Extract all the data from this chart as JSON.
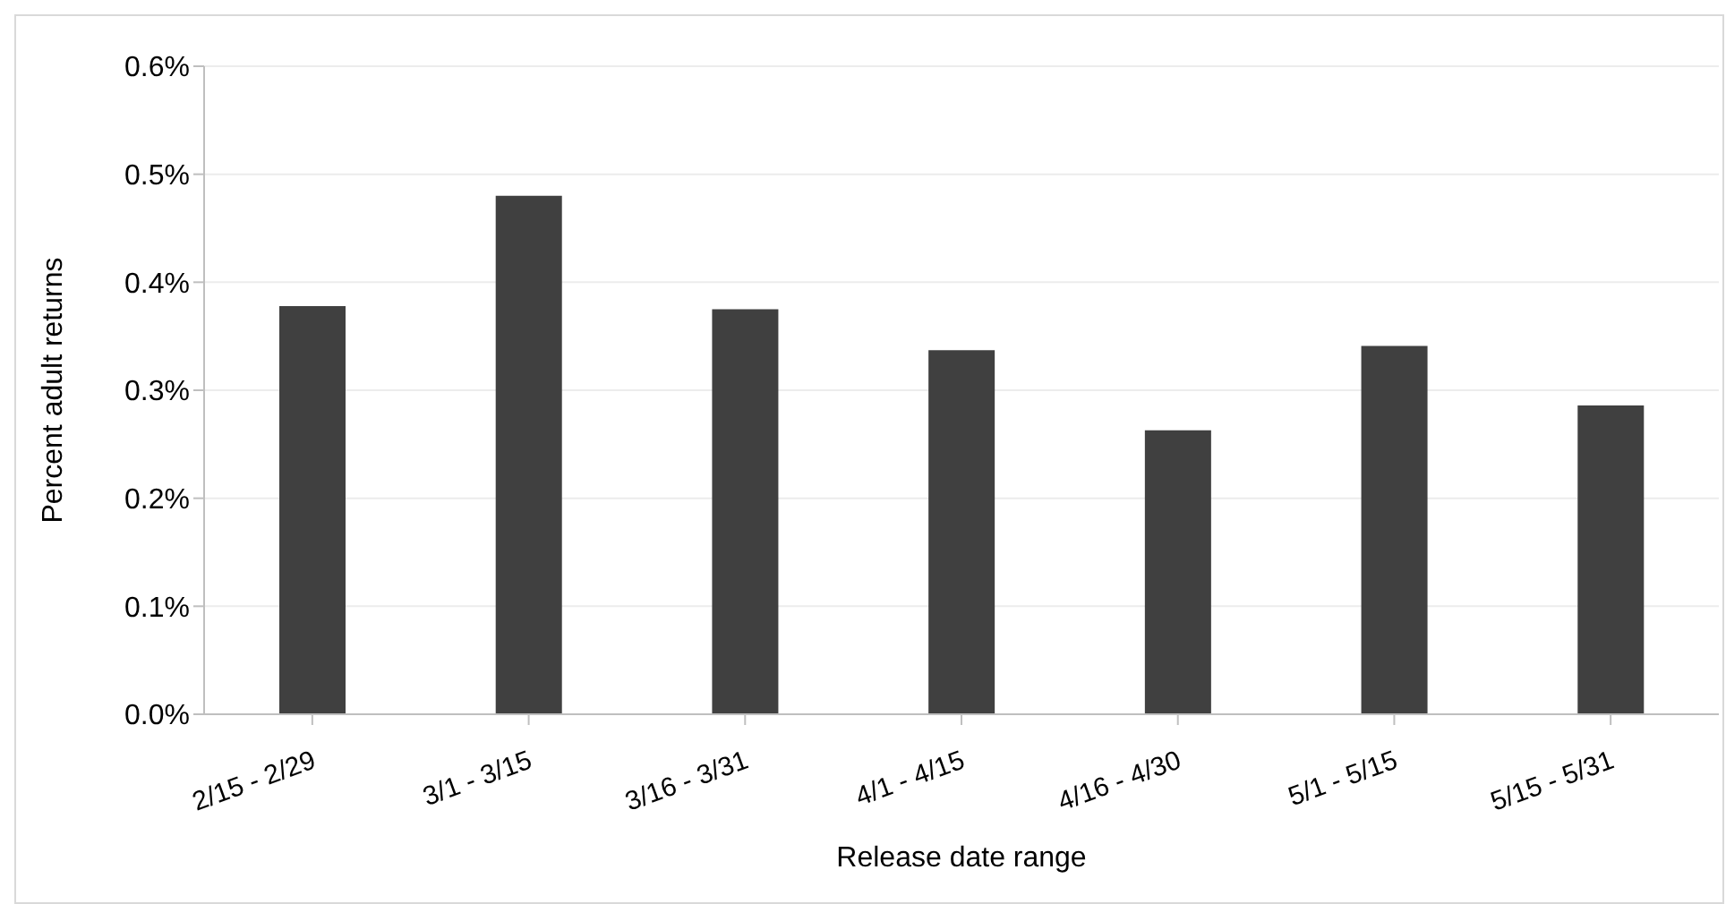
{
  "chart_data": {
    "type": "bar",
    "xlabel": "Release date range",
    "ylabel": "Percent adult returns",
    "categories": [
      "2/15 - 2/29",
      "3/1 - 3/15",
      "3/16 - 3/31",
      "4/1 - 4/15",
      "4/16 - 4/30",
      "5/1 - 5/15",
      "5/15 - 5/31"
    ],
    "values": [
      0.378,
      0.48,
      0.375,
      0.337,
      0.263,
      0.341,
      0.286
    ],
    "color": "#404040",
    "ylim": [
      0,
      0.6
    ],
    "yticks": [
      {
        "value": 0,
        "label": "0.0%"
      },
      {
        "value": 0.1,
        "label": "0.1%"
      },
      {
        "value": 0.2,
        "label": "0.2%"
      },
      {
        "value": 0.3,
        "label": "0.3%"
      },
      {
        "value": 0.4,
        "label": "0.4%"
      },
      {
        "value": 0.5,
        "label": "0.5%"
      },
      {
        "value": 0.6,
        "label": "0.6%"
      }
    ],
    "grid": "y",
    "legend": false
  }
}
